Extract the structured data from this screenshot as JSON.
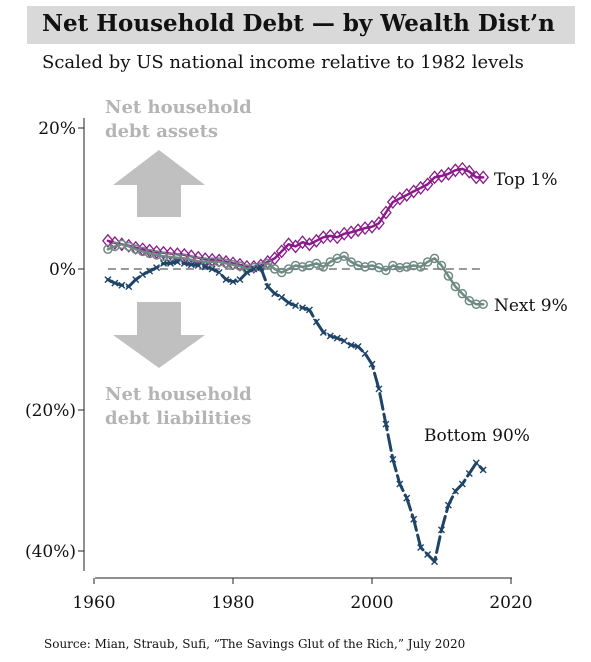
{
  "title": "Net Household Debt — by Wealth Dist’n",
  "subtitle": "Scaled by US national income relative to 1982 levels",
  "source": "Source: Mian, Straub, Sufi, “The Savings Glut of the Rich,” July 2020",
  "annotations": {
    "assets": [
      "Net household",
      "debt assets"
    ],
    "liabilities": [
      "Net household",
      "debt liabilities"
    ]
  },
  "colors": {
    "top1": "#8b1a8b",
    "next9": "#6e8a82",
    "bottom90": "#1f4468",
    "zero_line": "#999999",
    "arrows": "#c0c0c0"
  },
  "chart_data": {
    "type": "line",
    "xlabel": "",
    "ylabel": "",
    "xlim": [
      1958,
      2021
    ],
    "ylim": [
      -44,
      22
    ],
    "x_ticks": [
      1960,
      1980,
      2000,
      2020
    ],
    "x_tick_labels": [
      "1960",
      "1980",
      "2000",
      "2020"
    ],
    "y_ticks": [
      20,
      0,
      -20,
      -40
    ],
    "y_tick_labels": [
      "20%",
      "0%",
      "(20%)",
      "(40%)"
    ],
    "zero_line": true,
    "grid": false,
    "series": [
      {
        "name": "Top 1%",
        "marker": "diamond",
        "x": [
          1962,
          1963,
          1964,
          1965,
          1966,
          1967,
          1968,
          1969,
          1970,
          1971,
          1972,
          1973,
          1974,
          1975,
          1976,
          1977,
          1978,
          1979,
          1980,
          1981,
          1982,
          1983,
          1984,
          1985,
          1986,
          1987,
          1988,
          1989,
          1990,
          1991,
          1992,
          1993,
          1994,
          1995,
          1996,
          1997,
          1998,
          1999,
          2000,
          2001,
          2002,
          2003,
          2004,
          2005,
          2006,
          2007,
          2008,
          2009,
          2010,
          2011,
          2012,
          2013,
          2014,
          2015,
          2016
        ],
        "y": [
          4,
          3.7,
          3.5,
          3.3,
          3,
          2.8,
          2.6,
          2.4,
          2.3,
          2.2,
          2.1,
          2,
          1.8,
          1.6,
          1.4,
          1.3,
          1.2,
          1,
          0.8,
          0.6,
          0.3,
          0.3,
          0.5,
          1,
          1.5,
          2.5,
          3.5,
          3.2,
          3.8,
          3.5,
          4,
          4.5,
          4.7,
          4.5,
          5,
          5.2,
          5.5,
          5.8,
          6,
          6.5,
          8,
          9.5,
          10,
          10.5,
          11,
          11.5,
          12,
          13,
          13.2,
          13.5,
          14,
          14.2,
          13.8,
          13,
          13
        ]
      },
      {
        "name": "Next 9%",
        "marker": "circle",
        "x": [
          1962,
          1963,
          1964,
          1965,
          1966,
          1967,
          1968,
          1969,
          1970,
          1971,
          1972,
          1973,
          1974,
          1975,
          1976,
          1977,
          1978,
          1979,
          1980,
          1981,
          1982,
          1983,
          1984,
          1985,
          1986,
          1987,
          1988,
          1989,
          1990,
          1991,
          1992,
          1993,
          1994,
          1995,
          1996,
          1997,
          1998,
          1999,
          2000,
          2001,
          2002,
          2003,
          2004,
          2005,
          2006,
          2007,
          2008,
          2009,
          2010,
          2011,
          2012,
          2013,
          2014,
          2015,
          2016
        ],
        "y": [
          2.8,
          3.2,
          3.5,
          3.2,
          2.8,
          2.5,
          2.2,
          2,
          1.8,
          1.7,
          1.6,
          1.5,
          1.3,
          1.1,
          1,
          1,
          1,
          0.8,
          0.6,
          0.4,
          0,
          0.2,
          0.3,
          0.8,
          0,
          -0.5,
          0,
          0.5,
          0.3,
          0.5,
          0.8,
          0.3,
          1,
          1.5,
          1.8,
          1,
          0.5,
          0.3,
          0.5,
          0.2,
          -0.2,
          0.5,
          0.2,
          0.3,
          0.5,
          0.3,
          1,
          1.5,
          0.5,
          -1,
          -2.5,
          -3.5,
          -4.5,
          -5,
          -5
        ]
      },
      {
        "name": "Bottom 90%",
        "marker": "x",
        "x": [
          1962,
          1963,
          1964,
          1965,
          1966,
          1967,
          1968,
          1969,
          1970,
          1971,
          1972,
          1973,
          1974,
          1975,
          1976,
          1977,
          1978,
          1979,
          1980,
          1981,
          1982,
          1983,
          1984,
          1985,
          1986,
          1987,
          1988,
          1989,
          1990,
          1991,
          1992,
          1993,
          1994,
          1995,
          1996,
          1997,
          1998,
          1999,
          2000,
          2001,
          2002,
          2003,
          2004,
          2005,
          2006,
          2007,
          2008,
          2009,
          2010,
          2011,
          2012,
          2013,
          2014,
          2015,
          2016
        ],
        "y": [
          -1.5,
          -2,
          -2.3,
          -2.5,
          -1.5,
          -0.8,
          -0.3,
          0.2,
          0.8,
          0.8,
          1,
          0.8,
          0.6,
          0.5,
          0.3,
          0,
          -0.5,
          -1.5,
          -1.8,
          -1.5,
          -0.5,
          0,
          0.2,
          -2.5,
          -3.5,
          -4,
          -4.8,
          -5.2,
          -5.5,
          -5.8,
          -7.5,
          -9,
          -9.5,
          -9.8,
          -10.2,
          -10.8,
          -11,
          -12,
          -13.5,
          -17,
          -22,
          -27,
          -30.5,
          -32.5,
          -35.5,
          -39.5,
          -40.5,
          -41.5,
          -37,
          -33.5,
          -31.5,
          -30.5,
          -29,
          -27.5,
          -28.5
        ]
      }
    ]
  }
}
